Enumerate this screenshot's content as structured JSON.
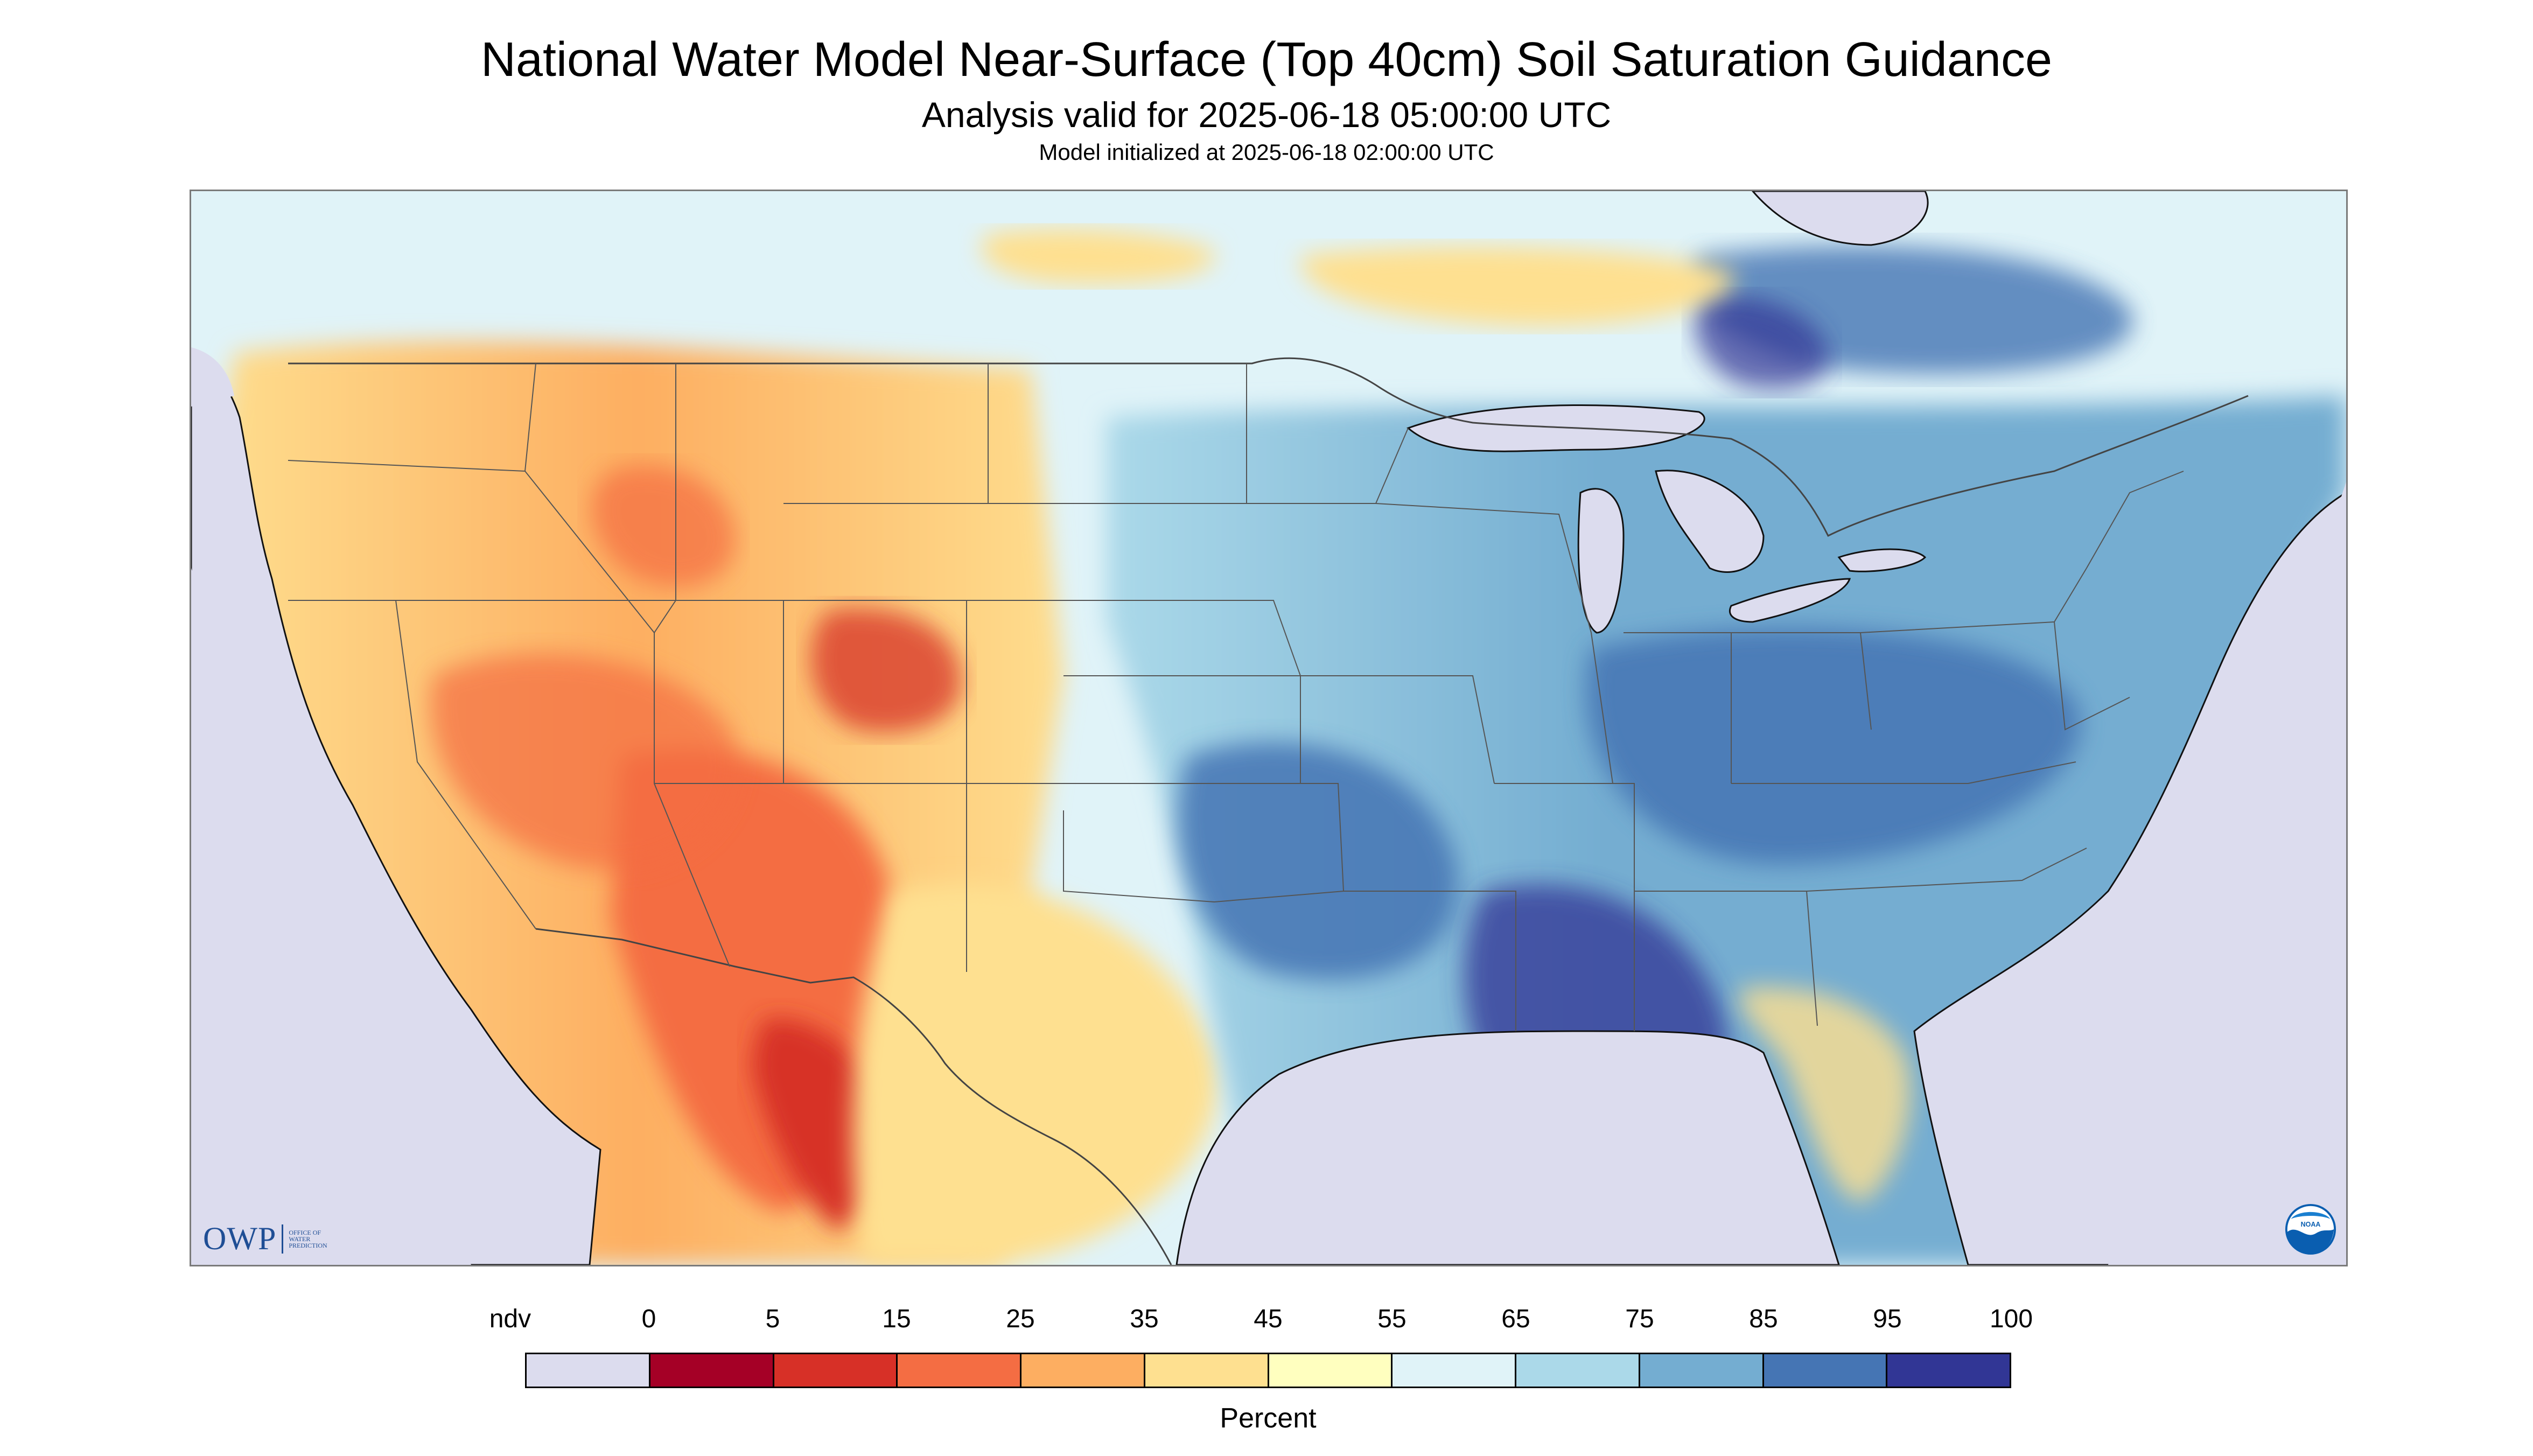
{
  "header": {
    "title": "National Water Model Near-Surface (Top 40cm) Soil Saturation Guidance",
    "subtitle": "Analysis valid for 2025-06-18 05:00:00 UTC",
    "init_line": "Model initialized at 2025-06-18 02:00:00 UTC"
  },
  "logos": {
    "owp": {
      "text": "OWP",
      "subtext": "OFFICE OF\nWATER\nPREDICTION",
      "color": "#1f4e95"
    },
    "noaa": {
      "text": "NOAA",
      "color": "#0a5eb0"
    }
  },
  "legend": {
    "unit": "Percent",
    "labels": [
      "ndv",
      "0",
      "5",
      "15",
      "25",
      "35",
      "45",
      "55",
      "65",
      "75",
      "85",
      "95",
      "100"
    ],
    "colors": [
      "#dcdcee",
      "#a50026",
      "#d73027",
      "#f46d43",
      "#fdae61",
      "#fee090",
      "#ffffbf",
      "#e0f3f8",
      "#abd9e9",
      "#74add1",
      "#4575b4",
      "#313695"
    ]
  },
  "colors": {
    "no_data": "#dcdcee",
    "boundary": "#444444",
    "coast": "#111111"
  }
}
